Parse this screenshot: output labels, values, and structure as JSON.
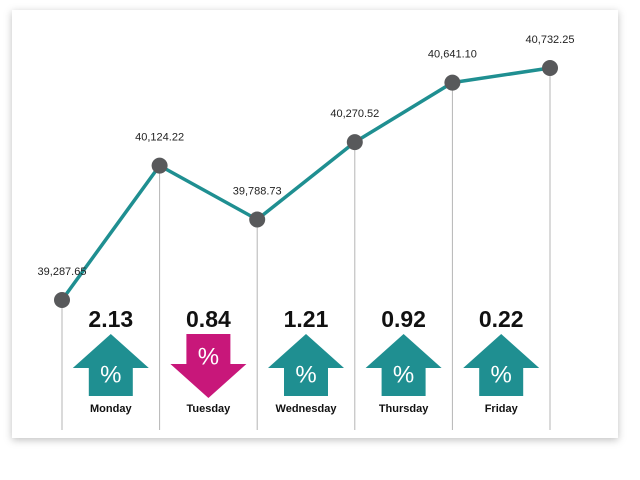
{
  "chart_data": {
    "type": "line",
    "values": [
      39287.65,
      40124.22,
      39788.73,
      40270.52,
      40641.1,
      40732.25
    ],
    "value_labels": [
      "39,287.65",
      "40,124.22",
      "39,788.73",
      "40,270.52",
      "40,641.10",
      "40,732.25"
    ],
    "color": "#1f8f91",
    "marker_color": "#58595b",
    "changes": {
      "categories": [
        "Monday",
        "Tuesday",
        "Wednesday",
        "Thursday",
        "Friday"
      ],
      "values": [
        2.13,
        0.84,
        1.21,
        0.92,
        0.22
      ],
      "directions": [
        "up",
        "down",
        "up",
        "up",
        "up"
      ],
      "colors": [
        "#1f8f91",
        "#c8177a",
        "#1f8f91",
        "#1f8f91",
        "#1f8f91"
      ],
      "symbol": "%"
    }
  }
}
